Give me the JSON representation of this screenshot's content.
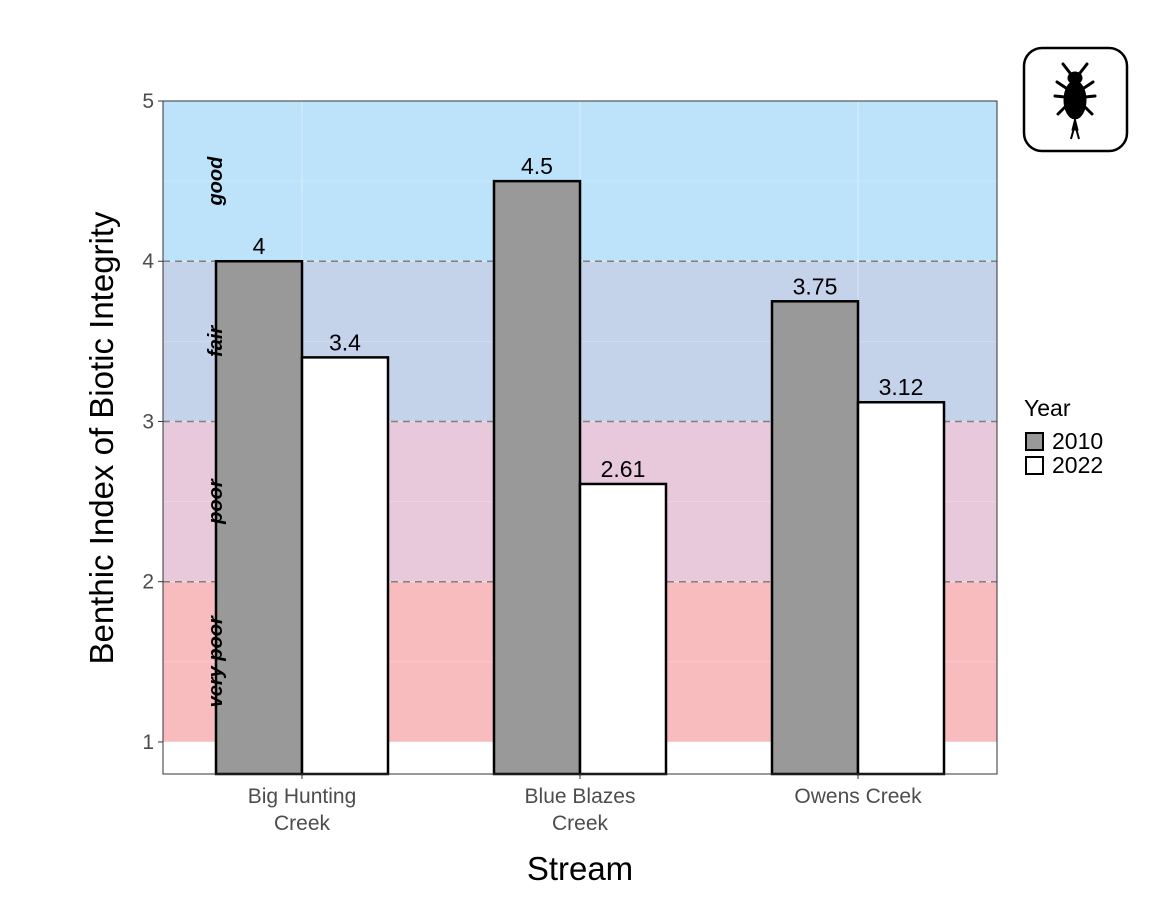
{
  "chart_data": {
    "type": "bar",
    "categories": [
      "Big Hunting Creek",
      "Blue Blazes Creek",
      "Owens Creek"
    ],
    "category_lines": [
      [
        "Big Hunting",
        "Creek"
      ],
      [
        "Blue Blazes",
        "Creek"
      ],
      [
        "Owens Creek"
      ]
    ],
    "series": [
      {
        "name": "2010",
        "values": [
          4,
          4.5,
          3.75
        ],
        "labels": [
          "4",
          "4.5",
          "3.75"
        ],
        "color": "#999999"
      },
      {
        "name": "2022",
        "values": [
          3.4,
          2.61,
          3.12
        ],
        "labels": [
          "3.4",
          "2.61",
          "3.12"
        ],
        "color": "#ffffff"
      }
    ],
    "xlabel": "Stream",
    "ylabel": "Benthic Index of Biotic Integrity",
    "ylim": [
      0.8,
      5
    ],
    "yticks": [
      1,
      2,
      3,
      4,
      5
    ],
    "legend": {
      "title": "Year",
      "placement": "right"
    },
    "bands": [
      {
        "label": "very poor",
        "from": 1,
        "to": 2,
        "color": "#f8bcbf"
      },
      {
        "label": "poor",
        "from": 2,
        "to": 3,
        "color": "#e8c9db"
      },
      {
        "label": "fair",
        "from": 3,
        "to": 4,
        "color": "#c4d2ea"
      },
      {
        "label": "good",
        "from": 4,
        "to": 5,
        "color": "#bde3fb"
      }
    ],
    "thresholds": [
      2,
      3,
      4
    ],
    "icon": "insect-icon"
  }
}
